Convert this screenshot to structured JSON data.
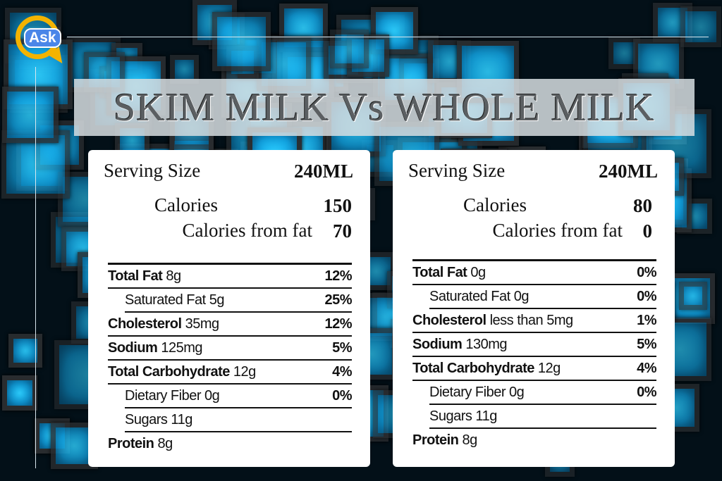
{
  "logo": {
    "text": "Ask",
    "color": "#f3b300"
  },
  "title": "SKIM MILK Vs WHOLE MILK",
  "panels": [
    {
      "serving_label": "Serving Size",
      "serving_value": "240ML",
      "calories_label": "Calories",
      "calories_value": "150",
      "fat_cal_label": "Calories from fat",
      "fat_cal_value": "70",
      "rows": [
        {
          "bold": "Total Fat",
          "text": " 8g",
          "pct": "12%",
          "indent": false
        },
        {
          "bold": "",
          "text": "Saturated Fat 5g",
          "pct": "25%",
          "indent": true
        },
        {
          "bold": "Cholesterol",
          "text": " 35mg",
          "pct": "12%",
          "indent": false
        },
        {
          "bold": "Sodium",
          "text": " 125mg",
          "pct": "5%",
          "indent": false
        },
        {
          "bold": "Total Carbohydrate",
          "text": " 12g",
          "pct": "4%",
          "indent": false
        },
        {
          "bold": "",
          "text": "Dietary Fiber 0g",
          "pct": "0%",
          "indent": true
        },
        {
          "bold": "",
          "text": "Sugars 11g",
          "pct": "",
          "indent": true
        },
        {
          "bold": "Protein",
          "text": " 8g",
          "pct": "",
          "indent": false
        }
      ]
    },
    {
      "serving_label": "Serving Size",
      "serving_value": "240ML",
      "calories_label": "Calories",
      "calories_value": "80",
      "fat_cal_label": "Calories from fat",
      "fat_cal_value": "0",
      "rows": [
        {
          "bold": "Total Fat",
          "text": " 0g",
          "pct": "0%",
          "indent": false
        },
        {
          "bold": "",
          "text": "Saturated Fat 0g",
          "pct": "0%",
          "indent": true
        },
        {
          "bold": "Cholesterol",
          "text": " less than 5mg",
          "pct": "1%",
          "indent": false
        },
        {
          "bold": "Sodium",
          "text": " 130mg",
          "pct": "5%",
          "indent": false
        },
        {
          "bold": "Total Carbohydrate",
          "text": " 12g",
          "pct": "4%",
          "indent": false
        },
        {
          "bold": "",
          "text": "Dietary Fiber 0g",
          "pct": "0%",
          "indent": true
        },
        {
          "bold": "",
          "text": "Sugars 11g",
          "pct": "",
          "indent": true
        },
        {
          "bold": "Protein",
          "text": " 8g",
          "pct": "",
          "indent": false
        }
      ]
    }
  ]
}
